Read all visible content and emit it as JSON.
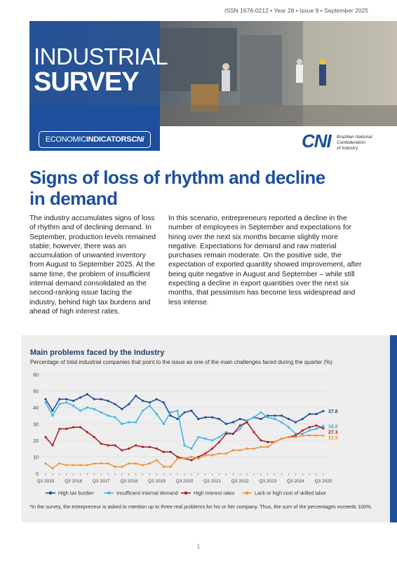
{
  "header": {
    "issn": "ISSN 1676-0212 • Year 28 • Issue 9 • September 2025",
    "title_line1": "INDUSTRIAL",
    "title_line2": "SURVEY",
    "badge": [
      "ECONOMIC",
      "INDICATORS",
      "CNi"
    ],
    "logo": {
      "mark": "CNI",
      "text": [
        "Brazilian National",
        "Confederation",
        "of Industry"
      ]
    }
  },
  "article": {
    "title": "Signs of loss of rhythm and decline in demand",
    "columns": [
      "The industry accumulates signs of loss of rhythm and of declining demand. In September, production levels remained stable; however, there was an accumulation of unwanted inventory from August to September 2025. At the same time, the problem of insufficient internal demand consolidated as the second-ranking issue facing the industry, behind high tax burdens and ahead of high interest rates.",
      "In this scenario, entrepreneurs reported a decline in the number of employees in September and expectations for hiring over the next six months became slightly more negative. Expectations for demand and raw material purchases remain moderate. On the positive side, the expectation of exported quantity showed improvement, after being quite negative in August and September – while still expecting a decline in export quantities over the next six months, that pessimism has become less widespread and less intense."
    ]
  },
  "chart_data": {
    "type": "line",
    "title": "Main problems faced by the Industry",
    "subtitle": "Percentage of total industrial companies that point to the issue as one of the main challenges faced during the quarter (%)",
    "categories": [
      "Q3 2015",
      null,
      null,
      null,
      "Q3 2016",
      null,
      null,
      null,
      "Q3 2017",
      null,
      null,
      null,
      "Q3 2018",
      null,
      null,
      null,
      "Q3 2019",
      null,
      null,
      null,
      "Q3 2020",
      null,
      null,
      null,
      "Q3 2021",
      null,
      null,
      null,
      "Q3 2022",
      null,
      null,
      null,
      "Q3 2023",
      null,
      null,
      null,
      "Q3 2024",
      null,
      null,
      null,
      "Q3 2025"
    ],
    "ylim": [
      0,
      60
    ],
    "yticks": [
      0,
      10,
      20,
      30,
      40,
      50,
      60
    ],
    "grid": true,
    "series": [
      {
        "name": "High tax burden",
        "color": "#1f4e9c",
        "values": [
          45,
          38,
          45,
          45,
          44,
          46,
          48,
          45,
          45,
          44,
          42,
          39,
          42,
          47,
          44,
          43,
          45,
          43,
          35,
          33,
          37,
          38,
          33,
          34,
          34,
          33,
          30,
          31,
          33,
          32,
          34,
          33,
          35,
          35,
          35,
          33,
          31,
          33,
          36,
          36,
          37.8
        ]
      },
      {
        "name": "Insufficient internal demand",
        "color": "#41b6e6",
        "values": [
          43,
          35,
          42,
          43,
          41,
          38,
          40,
          39,
          37,
          35,
          34,
          30,
          31,
          31,
          38,
          41,
          36,
          30,
          37,
          38,
          17,
          15,
          22,
          21,
          20,
          22,
          25,
          24,
          27,
          32,
          34,
          37,
          34,
          33,
          31,
          28,
          24,
          24,
          26,
          27,
          28.8
        ]
      },
      {
        "name": "High interest rates",
        "color": "#a8232a",
        "values": [
          22,
          17,
          27,
          27,
          28,
          28,
          25,
          22,
          18,
          17,
          17,
          14,
          15,
          17,
          16,
          16,
          15,
          13,
          13,
          10,
          9,
          8,
          10,
          12,
          15,
          19,
          24,
          24,
          29,
          31,
          25,
          20,
          19,
          19,
          21,
          22,
          23,
          26,
          28,
          29,
          27.3
        ]
      },
      {
        "name": "Lack or high cost of skilled labor",
        "color": "#f0953a",
        "values": [
          6,
          3,
          6,
          5,
          5,
          5,
          5,
          6,
          6,
          6,
          4,
          4,
          6,
          6,
          5,
          6,
          8,
          4,
          4,
          9,
          9,
          10,
          9,
          11,
          11,
          12,
          12,
          14,
          14,
          15,
          15,
          16,
          16,
          19,
          21,
          22,
          22,
          23,
          23,
          23,
          22.9
        ]
      }
    ]
  },
  "footnote": "*In the survey, the entrepreneur is asked to mention up to three real problems for his or her company. Thus, the sum of the percentages exceeds 100%.",
  "page_number": "1"
}
